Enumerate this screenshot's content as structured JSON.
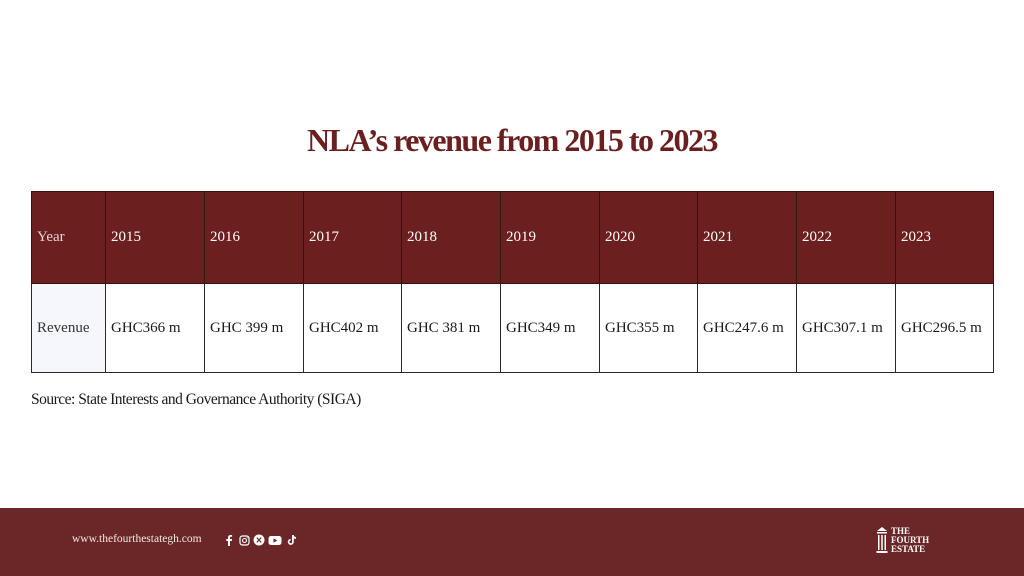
{
  "title": "NLA’s revenue from 2015 to 2023",
  "table": {
    "header": [
      "Year",
      "2015",
      "2016",
      "2017",
      "2018",
      "2019",
      "2020",
      "2021",
      "2022",
      "2023"
    ],
    "row": [
      "Revenue",
      "GHC366 m",
      "GHC 399 m",
      "GHC402 m",
      "GHC 381 m",
      "GHC349 m",
      "GHC355 m",
      "GHC247.6 m",
      "GHC307.1 m",
      "GHC296.5 m"
    ]
  },
  "source": "Source: State Interests and Governance Authority (SIGA)",
  "footer": {
    "website": "www.thefourthestategh.com",
    "social_icons": [
      "facebook-icon",
      "instagram-icon",
      "x-icon",
      "youtube-icon",
      "tiktok-icon"
    ],
    "logo_lines": [
      "THE",
      "FOURTH",
      "ESTATE"
    ]
  },
  "colors": {
    "accent": "#6b1f1f",
    "footer_bg": "#6b2727",
    "text": "#1a1a1a"
  }
}
